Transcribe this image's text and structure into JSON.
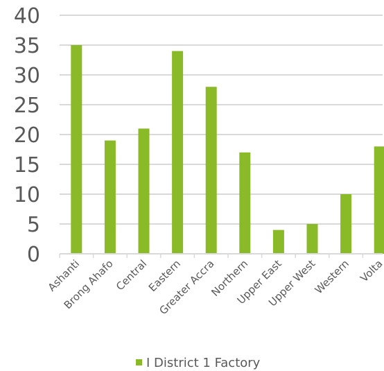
{
  "chart_data": {
    "type": "bar",
    "categories": [
      "Ashanti",
      "Brong Ahafo",
      "Central",
      "Eastern",
      "Greater Accra",
      "Northern",
      "Upper East",
      "Upper West",
      "Western",
      "Volta"
    ],
    "series": [
      {
        "name": "I District 1 Factory",
        "values": [
          35,
          19,
          21,
          34,
          28,
          17,
          4,
          5,
          10,
          18
        ]
      }
    ],
    "ylim": [
      0,
      40
    ],
    "yticks": [
      0,
      5,
      10,
      15,
      20,
      25,
      30,
      35,
      40
    ],
    "grid": true,
    "legend": "bottom",
    "colors": {
      "bar": "#8aba27",
      "grid": "#d9d9d9",
      "text": "#595959"
    }
  }
}
